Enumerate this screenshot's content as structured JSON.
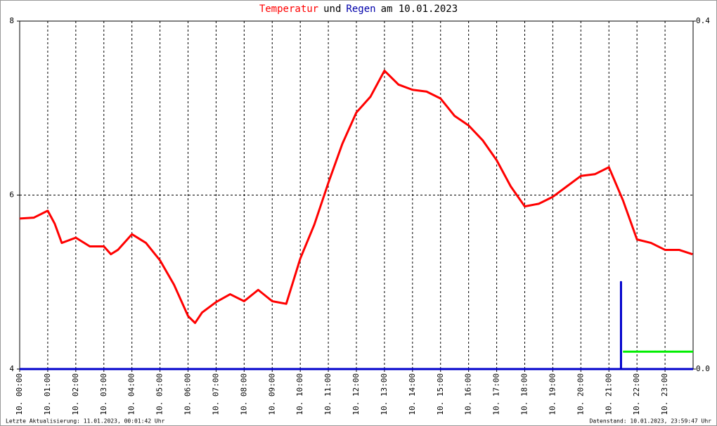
{
  "chart_data": {
    "type": "line",
    "title_parts": [
      {
        "text": "Temperatur",
        "color": "#ff0000"
      },
      {
        "text": "und",
        "color": "#000000"
      },
      {
        "text": "Regen",
        "color": "#0000aa"
      },
      {
        "text": "am 10.01.2023",
        "color": "#000000"
      }
    ],
    "xlim": [
      0,
      24
    ],
    "xticks": [
      {
        "value": 0,
        "label": "10. 00:00"
      },
      {
        "value": 1,
        "label": "10. 01:00"
      },
      {
        "value": 2,
        "label": "10. 02:00"
      },
      {
        "value": 3,
        "label": "10. 03:00"
      },
      {
        "value": 4,
        "label": "10. 04:00"
      },
      {
        "value": 5,
        "label": "10. 05:00"
      },
      {
        "value": 6,
        "label": "10. 06:00"
      },
      {
        "value": 7,
        "label": "10. 07:00"
      },
      {
        "value": 8,
        "label": "10. 08:00"
      },
      {
        "value": 9,
        "label": "10. 09:00"
      },
      {
        "value": 10,
        "label": "10. 10:00"
      },
      {
        "value": 11,
        "label": "10. 11:00"
      },
      {
        "value": 12,
        "label": "10. 12:00"
      },
      {
        "value": 13,
        "label": "10. 13:00"
      },
      {
        "value": 14,
        "label": "10. 14:00"
      },
      {
        "value": 15,
        "label": "10. 15:00"
      },
      {
        "value": 16,
        "label": "10. 16:00"
      },
      {
        "value": 17,
        "label": "10. 17:00"
      },
      {
        "value": 18,
        "label": "10. 18:00"
      },
      {
        "value": 19,
        "label": "10. 19:00"
      },
      {
        "value": 20,
        "label": "10. 20:00"
      },
      {
        "value": 21,
        "label": "10. 21:00"
      },
      {
        "value": 22,
        "label": "10. 22:00"
      },
      {
        "value": 23,
        "label": "10. 23:00"
      }
    ],
    "ylim": [
      4,
      8
    ],
    "yticks": [
      4,
      6,
      8
    ],
    "y2lim": [
      0,
      0.4
    ],
    "y2ticks": [
      {
        "value": 0,
        "label": "0.0"
      },
      {
        "value": 0.4,
        "label": "0.4"
      }
    ],
    "grid": true,
    "series": [
      {
        "color": "#ff0000",
        "x": [
          0,
          0.5,
          1,
          1.25,
          1.5,
          2,
          2.5,
          3,
          3.25,
          3.5,
          4,
          4.5,
          5,
          5.5,
          6,
          6.25,
          6.5,
          7,
          7.5,
          8,
          8.5,
          9,
          9.5,
          10,
          10.5,
          11,
          11.5,
          12,
          12.5,
          13,
          13.5,
          14,
          14.5,
          15,
          15.5,
          16,
          16.5,
          17,
          17.5,
          18,
          18.5,
          19,
          19.5,
          20,
          20.5,
          21,
          21.5,
          22,
          22.5,
          23,
          23.5,
          23.98
        ],
        "values": [
          5.73,
          5.74,
          5.82,
          5.67,
          5.45,
          5.51,
          5.41,
          5.41,
          5.32,
          5.37,
          5.55,
          5.45,
          5.25,
          4.97,
          4.61,
          4.53,
          4.65,
          4.77,
          4.86,
          4.78,
          4.91,
          4.78,
          4.75,
          5.27,
          5.66,
          6.14,
          6.59,
          6.95,
          7.13,
          7.43,
          7.27,
          7.21,
          7.19,
          7.11,
          6.91,
          6.8,
          6.63,
          6.4,
          6.1,
          5.87,
          5.9,
          5.98,
          6.1,
          6.22,
          6.24,
          6.32,
          5.94,
          5.49,
          5.45,
          5.37,
          5.37,
          5.32
        ]
      },
      {
        "color": "#0000cc",
        "axis": "y2",
        "x": [
          0,
          21.43,
          21.43,
          21.43,
          24
        ],
        "values": [
          0,
          0,
          0.1,
          0,
          0
        ]
      },
      {
        "color": "#00ee00",
        "axis": "y2",
        "x": [
          21.5,
          24
        ],
        "values": [
          0.02,
          0.02
        ]
      }
    ],
    "footer_left": "Letzte Aktualisierung: 11.01.2023, 00:01:42 Uhr",
    "footer_right": "Datenstand: 10.01.2023, 23:59:47 Uhr"
  }
}
